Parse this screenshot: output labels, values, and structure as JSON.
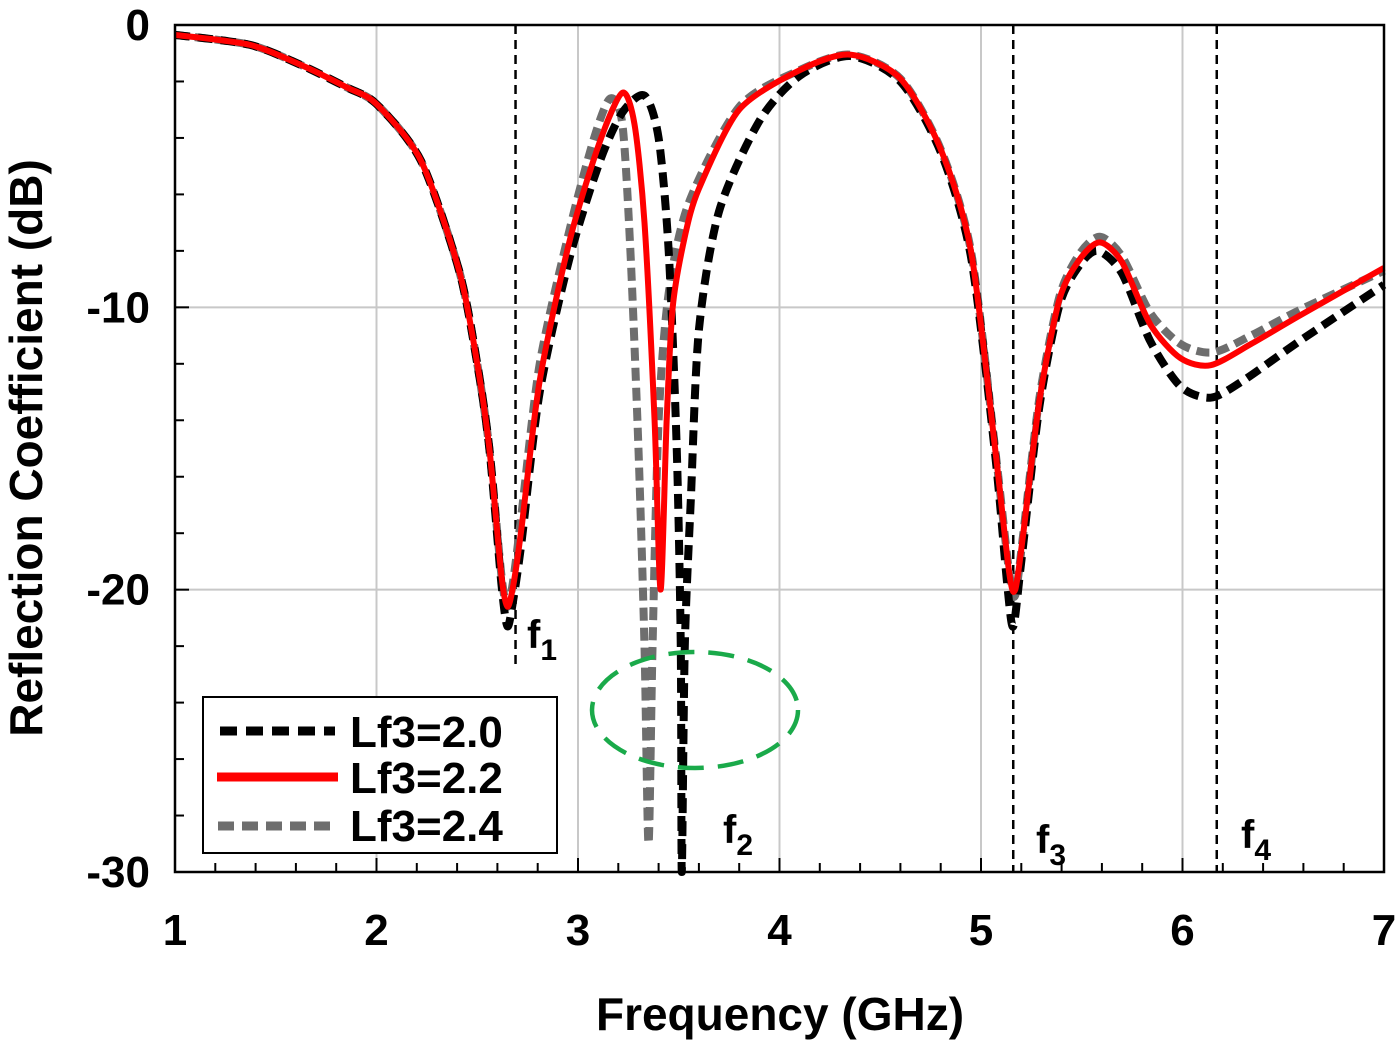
{
  "chart_data": {
    "type": "line",
    "title": "",
    "xlabel": "Frequency (GHz)",
    "ylabel": "Reflection Coefficient (dB)",
    "xlim": [
      1,
      7
    ],
    "ylim": [
      -30,
      0
    ],
    "xticks": [
      "1",
      "2",
      "3",
      "4",
      "5",
      "6",
      "7"
    ],
    "yticks": [
      "0",
      "-10",
      "-20",
      "-30"
    ],
    "grid": true,
    "legend_position": "bottom-left",
    "colors": {
      "black": "#000000",
      "red": "#ff0000",
      "gray": "#6e6e6e",
      "ellipse": "#1aaa4a",
      "grid": "#c8c8c8"
    },
    "series": [
      {
        "name": "Lf3=2.0",
        "style": "dashed",
        "color": "#000000",
        "points": [
          [
            1,
            -0.35
          ],
          [
            1.37,
            -0.7
          ],
          [
            1.62,
            -1.4
          ],
          [
            1.85,
            -2.2
          ],
          [
            2,
            -2.8
          ],
          [
            2.22,
            -4.8
          ],
          [
            2.41,
            -8.7
          ],
          [
            2.5,
            -12
          ],
          [
            2.56,
            -15
          ],
          [
            2.62,
            -19.8
          ],
          [
            2.65,
            -21.3
          ],
          [
            2.68,
            -20.3
          ],
          [
            2.72,
            -18.3
          ],
          [
            2.81,
            -13
          ],
          [
            2.96,
            -8.2
          ],
          [
            3.11,
            -4.8
          ],
          [
            3.22,
            -3.1
          ],
          [
            3.33,
            -2.5
          ],
          [
            3.4,
            -4
          ],
          [
            3.45,
            -8
          ],
          [
            3.49,
            -15
          ],
          [
            3.51,
            -22
          ],
          [
            3.515,
            -30
          ],
          [
            3.53,
            -22
          ],
          [
            3.56,
            -16.8
          ],
          [
            3.6,
            -10.8
          ],
          [
            3.7,
            -6.6
          ],
          [
            3.9,
            -3.4
          ],
          [
            4.1,
            -1.8
          ],
          [
            4.35,
            -1.1
          ],
          [
            4.6,
            -2
          ],
          [
            4.8,
            -4.5
          ],
          [
            4.95,
            -8.2
          ],
          [
            5.07,
            -15.2
          ],
          [
            5.13,
            -19.8
          ],
          [
            5.16,
            -21.3
          ],
          [
            5.2,
            -19
          ],
          [
            5.29,
            -13.5
          ],
          [
            5.39,
            -9.9
          ],
          [
            5.49,
            -8.5
          ],
          [
            5.58,
            -8
          ],
          [
            5.7,
            -8.8
          ],
          [
            5.84,
            -11.2
          ],
          [
            5.99,
            -12.8
          ],
          [
            6.14,
            -13.2
          ],
          [
            6.3,
            -12.6
          ],
          [
            6.58,
            -11.2
          ],
          [
            7,
            -9.2
          ]
        ]
      },
      {
        "name": "Lf3=2.2",
        "style": "solid",
        "color": "#ff0000",
        "points": [
          [
            1,
            -0.35
          ],
          [
            1.37,
            -0.7
          ],
          [
            1.62,
            -1.4
          ],
          [
            1.85,
            -2.2
          ],
          [
            2,
            -2.8
          ],
          [
            2.22,
            -4.8
          ],
          [
            2.41,
            -8.7
          ],
          [
            2.5,
            -12
          ],
          [
            2.56,
            -15
          ],
          [
            2.62,
            -19.5
          ],
          [
            2.65,
            -20.6
          ],
          [
            2.68,
            -19.8
          ],
          [
            2.72,
            -17.8
          ],
          [
            2.81,
            -12.6
          ],
          [
            2.96,
            -7.6
          ],
          [
            3.11,
            -4.1
          ],
          [
            3.22,
            -2.4
          ],
          [
            3.28,
            -3.5
          ],
          [
            3.33,
            -7
          ],
          [
            3.38,
            -14
          ],
          [
            3.41,
            -20
          ],
          [
            3.44,
            -14
          ],
          [
            3.47,
            -10
          ],
          [
            3.53,
            -7.5
          ],
          [
            3.6,
            -5.8
          ],
          [
            3.8,
            -3
          ],
          [
            4.1,
            -1.6
          ],
          [
            4.35,
            -1.05
          ],
          [
            4.6,
            -1.9
          ],
          [
            4.8,
            -4.4
          ],
          [
            4.95,
            -8
          ],
          [
            5.07,
            -15
          ],
          [
            5.14,
            -19.4
          ],
          [
            5.17,
            -20
          ],
          [
            5.21,
            -18
          ],
          [
            5.29,
            -13.3
          ],
          [
            5.39,
            -9.7
          ],
          [
            5.49,
            -8.3
          ],
          [
            5.59,
            -7.7
          ],
          [
            5.7,
            -8.4
          ],
          [
            5.84,
            -10.6
          ],
          [
            5.99,
            -11.8
          ],
          [
            6.14,
            -12.05
          ],
          [
            6.34,
            -11.3
          ],
          [
            6.58,
            -10.3
          ],
          [
            7,
            -8.6
          ]
        ]
      },
      {
        "name": "Lf3=2.4",
        "style": "dashed",
        "color": "#6e6e6e",
        "points": [
          [
            1,
            -0.35
          ],
          [
            1.37,
            -0.7
          ],
          [
            1.62,
            -1.4
          ],
          [
            1.85,
            -2.2
          ],
          [
            2,
            -2.8
          ],
          [
            2.22,
            -4.8
          ],
          [
            2.41,
            -8.7
          ],
          [
            2.5,
            -12
          ],
          [
            2.56,
            -15
          ],
          [
            2.62,
            -19.5
          ],
          [
            2.65,
            -20.6
          ],
          [
            2.68,
            -19.6
          ],
          [
            2.72,
            -17.3
          ],
          [
            2.81,
            -12
          ],
          [
            2.96,
            -7.2
          ],
          [
            3.08,
            -4
          ],
          [
            3.16,
            -2.6
          ],
          [
            3.22,
            -3.5
          ],
          [
            3.26,
            -8
          ],
          [
            3.3,
            -15
          ],
          [
            3.33,
            -22
          ],
          [
            3.35,
            -29
          ],
          [
            3.37,
            -22
          ],
          [
            3.4,
            -14
          ],
          [
            3.45,
            -9.5
          ],
          [
            3.55,
            -6.3
          ],
          [
            3.8,
            -2.9
          ],
          [
            4.1,
            -1.6
          ],
          [
            4.35,
            -1.05
          ],
          [
            4.6,
            -1.9
          ],
          [
            4.8,
            -4.4
          ],
          [
            4.95,
            -8
          ],
          [
            5.07,
            -15
          ],
          [
            5.14,
            -19.4
          ],
          [
            5.17,
            -20.2
          ],
          [
            5.21,
            -18
          ],
          [
            5.29,
            -13.2
          ],
          [
            5.39,
            -9.6
          ],
          [
            5.49,
            -8.1
          ],
          [
            5.59,
            -7.5
          ],
          [
            5.7,
            -8.2
          ],
          [
            5.84,
            -10.2
          ],
          [
            5.99,
            -11.3
          ],
          [
            6.15,
            -11.6
          ],
          [
            6.34,
            -11
          ],
          [
            6.58,
            -10.1
          ],
          [
            7,
            -8.7
          ]
        ]
      }
    ],
    "markers": [
      {
        "label": "f",
        "sub": "1",
        "x": 2.69
      },
      {
        "label": "f",
        "sub": "2",
        "x": null
      },
      {
        "label": "f",
        "sub": "3",
        "x": 5.16
      },
      {
        "label": "f",
        "sub": "4",
        "x": 6.17
      }
    ]
  }
}
